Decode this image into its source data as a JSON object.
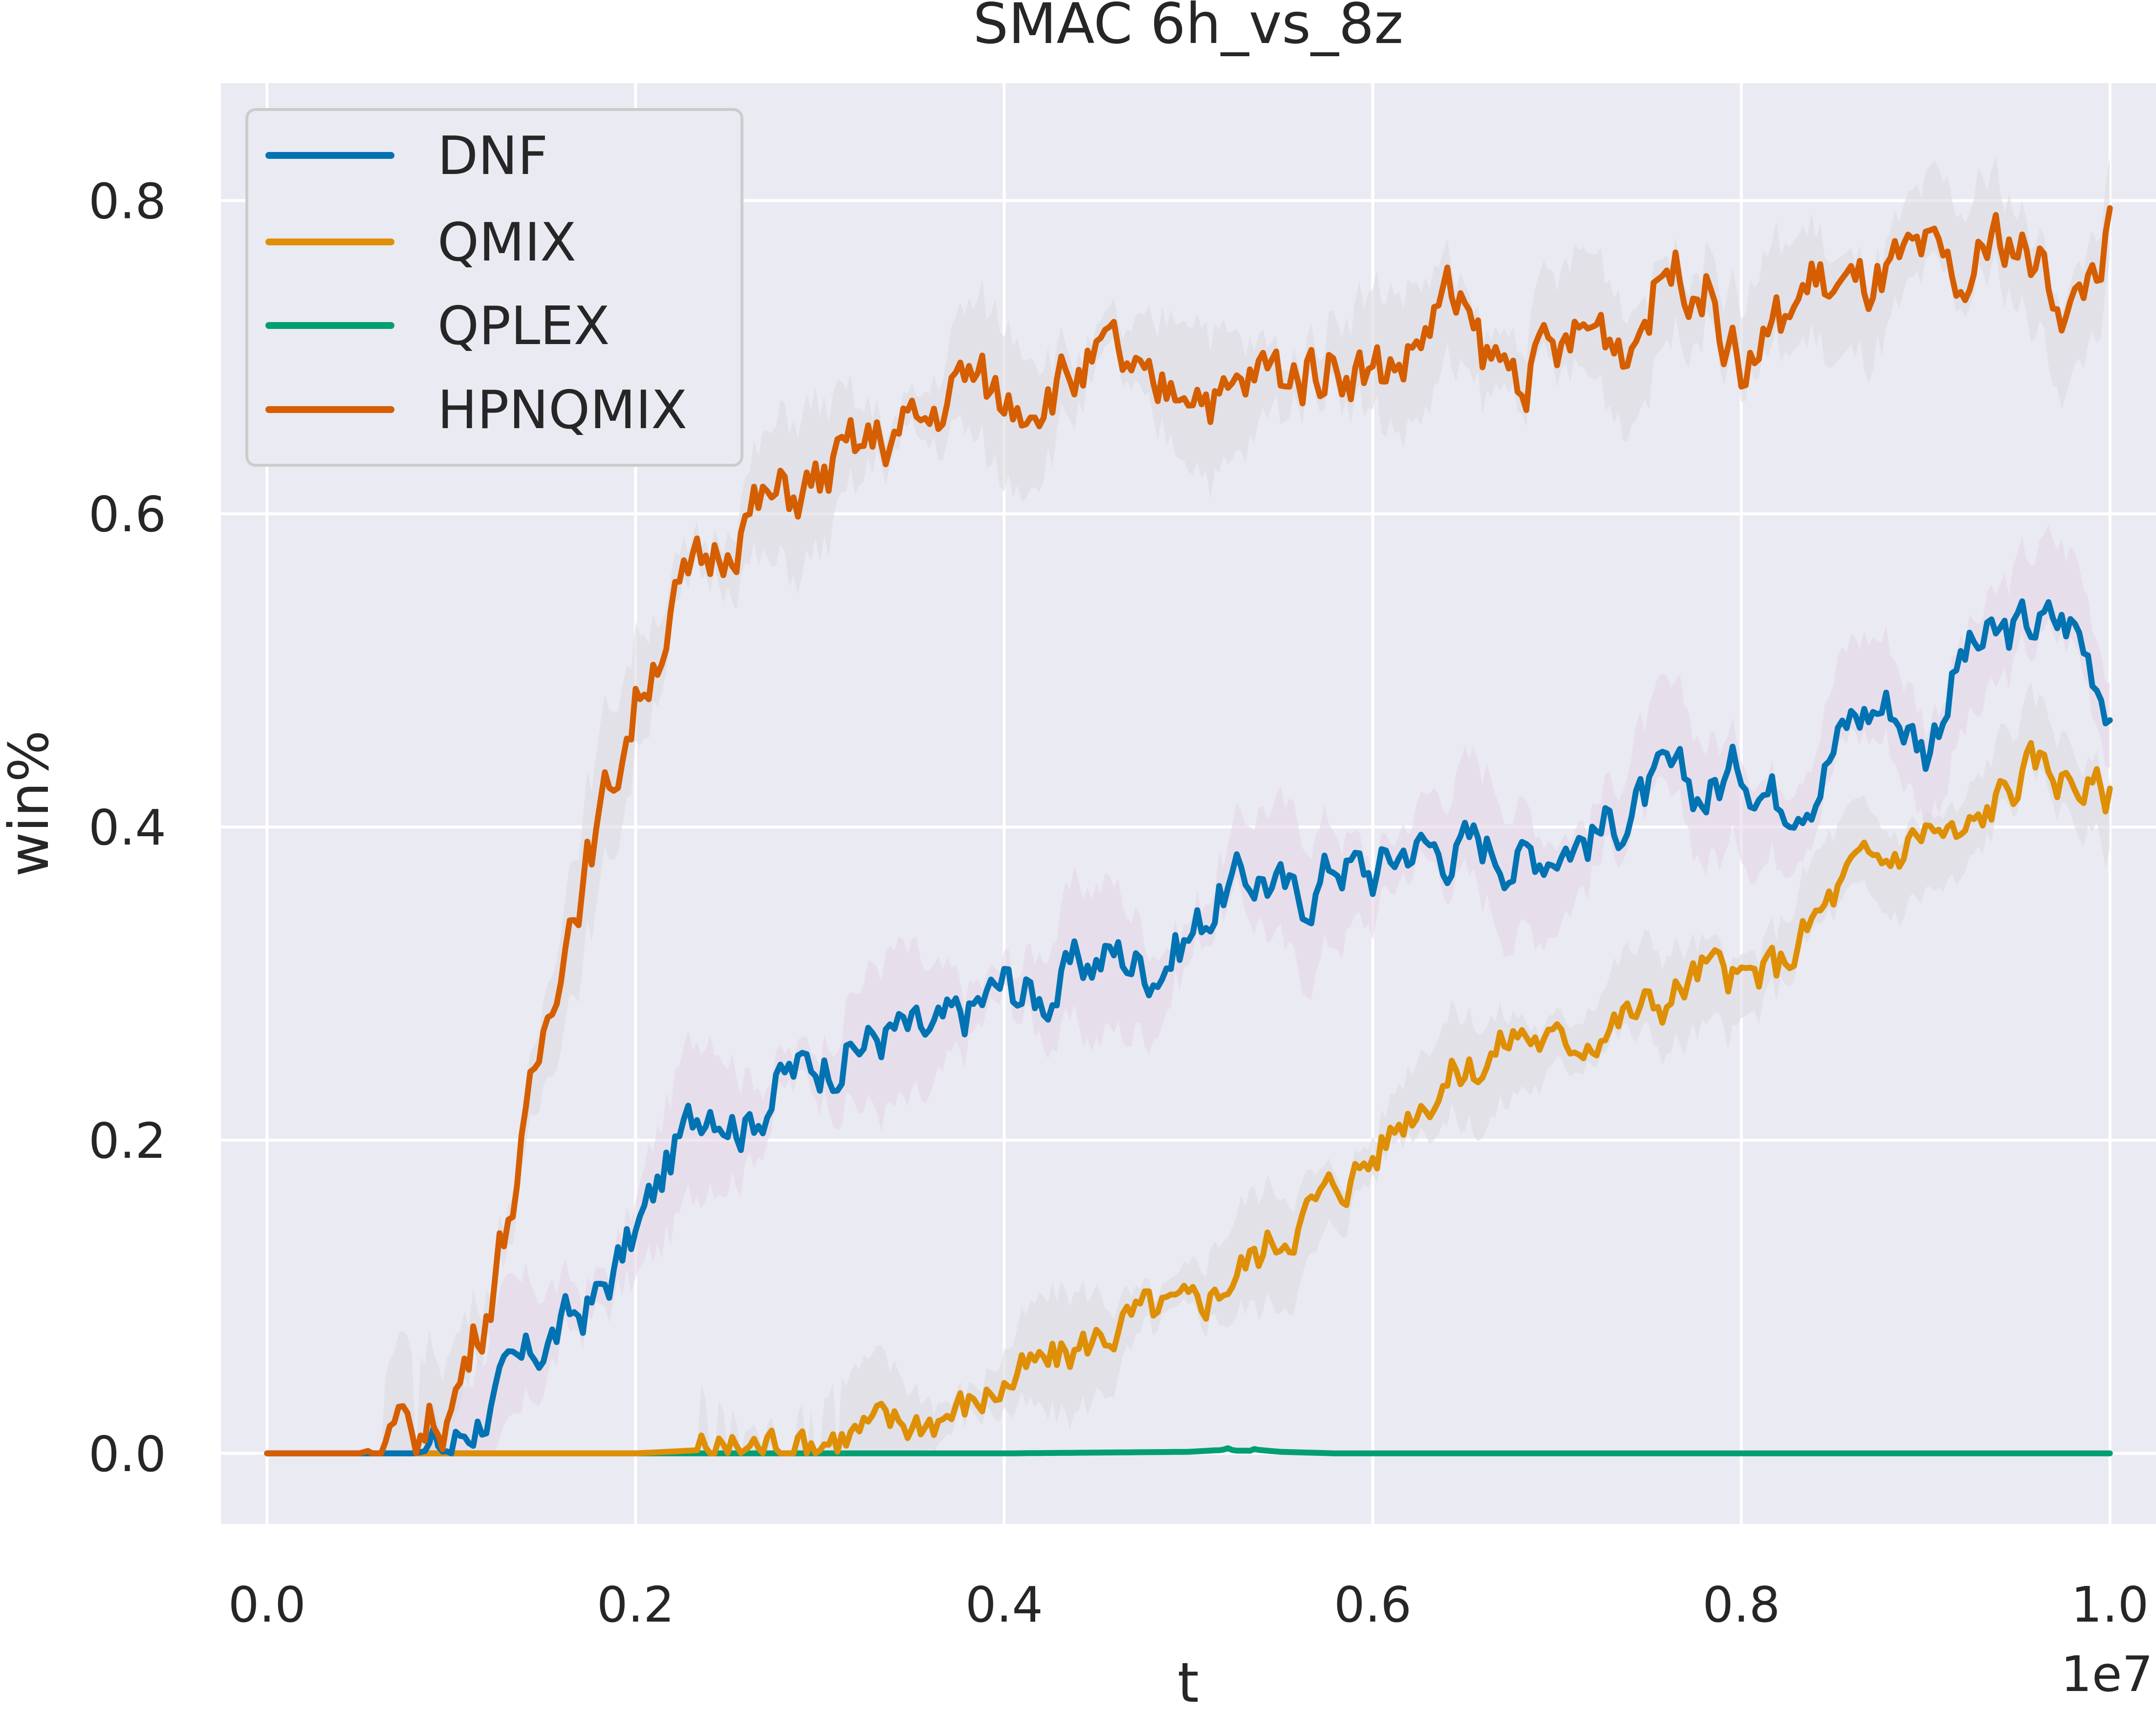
{
  "chart_data": {
    "type": "line",
    "title": "SMAC 6h_vs_8z",
    "xlabel": "t",
    "ylabel": "win%",
    "x_offset_label": "1e7",
    "xlim": [
      -0.025,
      1.025
    ],
    "ylim": [
      -0.045,
      0.875
    ],
    "x_ticks": [
      0.0,
      0.2,
      0.4,
      0.6,
      0.8,
      1.0
    ],
    "x_tick_labels": [
      "0.0",
      "0.2",
      "0.4",
      "0.6",
      "0.8",
      "1.0"
    ],
    "y_ticks": [
      0.0,
      0.2,
      0.4,
      0.6,
      0.8
    ],
    "y_tick_labels": [
      "0.0",
      "0.2",
      "0.4",
      "0.6",
      "0.8"
    ],
    "grid": true,
    "legend_position": "top-left",
    "colors": {
      "background": "#eaeaf2",
      "grid": "#ffffff",
      "band": "#d9d9de",
      "band_pink": "#e3d3e8"
    },
    "series": [
      {
        "name": "DNF",
        "color": "#0173b2",
        "x": [
          0.0,
          0.05,
          0.08,
          0.1,
          0.12,
          0.15,
          0.18,
          0.2,
          0.22,
          0.24,
          0.26,
          0.28,
          0.3,
          0.32,
          0.34,
          0.36,
          0.38,
          0.4,
          0.42,
          0.44,
          0.46,
          0.48,
          0.5,
          0.52,
          0.54,
          0.56,
          0.58,
          0.6,
          0.62,
          0.64,
          0.66,
          0.68,
          0.7,
          0.72,
          0.74,
          0.76,
          0.78,
          0.8,
          0.82,
          0.84,
          0.86,
          0.88,
          0.9,
          0.92,
          0.94,
          0.96,
          0.98,
          1.0
        ],
        "y": [
          0.0,
          0.0,
          0.0,
          0.005,
          0.03,
          0.07,
          0.1,
          0.14,
          0.19,
          0.23,
          0.21,
          0.24,
          0.25,
          0.26,
          0.27,
          0.265,
          0.28,
          0.3,
          0.29,
          0.31,
          0.32,
          0.31,
          0.33,
          0.36,
          0.37,
          0.35,
          0.38,
          0.37,
          0.39,
          0.385,
          0.39,
          0.38,
          0.39,
          0.395,
          0.41,
          0.43,
          0.42,
          0.44,
          0.42,
          0.43,
          0.47,
          0.48,
          0.45,
          0.51,
          0.52,
          0.53,
          0.53,
          0.48
        ]
      },
      {
        "name": "QMIX",
        "color": "#de8f05",
        "x": [
          0.0,
          0.1,
          0.2,
          0.25,
          0.3,
          0.35,
          0.38,
          0.4,
          0.43,
          0.46,
          0.48,
          0.5,
          0.52,
          0.54,
          0.56,
          0.58,
          0.6,
          0.62,
          0.64,
          0.66,
          0.68,
          0.7,
          0.72,
          0.74,
          0.76,
          0.78,
          0.8,
          0.82,
          0.84,
          0.86,
          0.88,
          0.9,
          0.92,
          0.94,
          0.96,
          0.98,
          1.0
        ],
        "y": [
          0.0,
          0.0,
          0.0,
          0.003,
          0.01,
          0.02,
          0.03,
          0.045,
          0.06,
          0.08,
          0.09,
          0.09,
          0.11,
          0.13,
          0.15,
          0.17,
          0.19,
          0.22,
          0.24,
          0.25,
          0.27,
          0.26,
          0.27,
          0.28,
          0.29,
          0.31,
          0.3,
          0.31,
          0.34,
          0.37,
          0.38,
          0.4,
          0.39,
          0.42,
          0.44,
          0.43,
          0.42
        ]
      },
      {
        "name": "QPLEX",
        "color": "#029e73",
        "x": [
          0.0,
          0.2,
          0.4,
          0.5,
          0.53,
          0.55,
          0.58,
          0.7,
          1.0
        ],
        "y": [
          0.0,
          0.0,
          0.0,
          0.001,
          0.003,
          0.001,
          0.0,
          0.0,
          0.0
        ]
      },
      {
        "name": "HPNQMIX",
        "color": "#d55e00",
        "x": [
          0.0,
          0.05,
          0.08,
          0.1,
          0.12,
          0.14,
          0.16,
          0.18,
          0.2,
          0.22,
          0.24,
          0.26,
          0.28,
          0.3,
          0.32,
          0.34,
          0.36,
          0.38,
          0.4,
          0.42,
          0.44,
          0.46,
          0.48,
          0.5,
          0.52,
          0.54,
          0.56,
          0.58,
          0.6,
          0.62,
          0.64,
          0.66,
          0.68,
          0.7,
          0.72,
          0.74,
          0.76,
          0.78,
          0.8,
          0.82,
          0.84,
          0.86,
          0.88,
          0.9,
          0.92,
          0.94,
          0.96,
          0.98,
          1.0
        ],
        "y": [
          0.0,
          0.0,
          0.01,
          0.03,
          0.1,
          0.2,
          0.33,
          0.4,
          0.48,
          0.54,
          0.57,
          0.6,
          0.61,
          0.62,
          0.64,
          0.65,
          0.66,
          0.69,
          0.67,
          0.68,
          0.69,
          0.7,
          0.67,
          0.69,
          0.67,
          0.69,
          0.69,
          0.7,
          0.69,
          0.7,
          0.74,
          0.7,
          0.69,
          0.7,
          0.72,
          0.71,
          0.76,
          0.75,
          0.69,
          0.72,
          0.75,
          0.74,
          0.75,
          0.76,
          0.74,
          0.78,
          0.76,
          0.73,
          0.78
        ]
      }
    ]
  }
}
